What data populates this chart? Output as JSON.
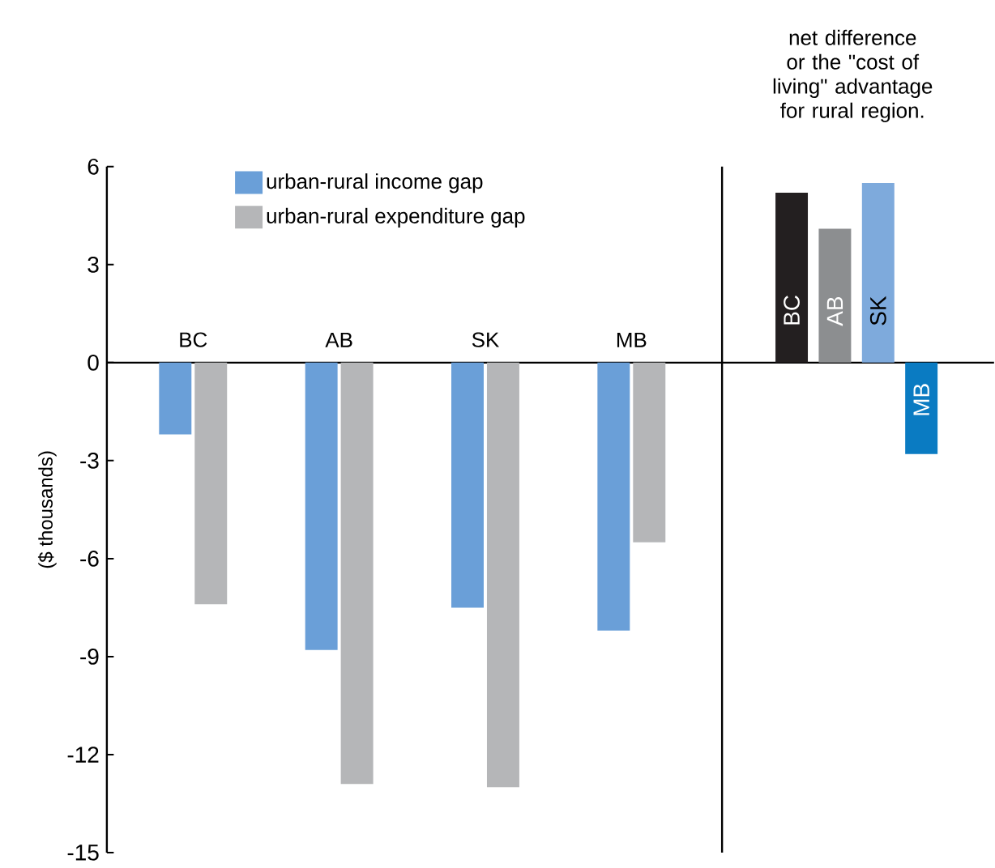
{
  "chart_data": [
    {
      "type": "bar",
      "ylabel": "($ thousands)",
      "categories": [
        "BC",
        "AB",
        "SK",
        "MB"
      ],
      "series": [
        {
          "name": "urban-rural income gap",
          "color": "#6a9fd8",
          "values": [
            -2.2,
            -8.8,
            -7.5,
            -8.2
          ]
        },
        {
          "name": "urban-rural expenditure gap",
          "color": "#b5b6b8",
          "values": [
            -7.4,
            -12.9,
            -13.0,
            -5.5
          ]
        }
      ],
      "ylim": [
        -15,
        6
      ],
      "yticks": [
        -15,
        -12,
        -9,
        -6,
        -3,
        0,
        3,
        6
      ],
      "legend": "top"
    },
    {
      "type": "bar",
      "title": "net difference or the \"cost of living\" advantage for rural region.",
      "categories": [
        "BC",
        "AB",
        "SK",
        "MB"
      ],
      "values": [
        5.2,
        4.1,
        5.5,
        -2.8
      ],
      "colors": [
        "#231f20",
        "#8c8e90",
        "#7eaadc",
        "#0a7bc2"
      ],
      "ylim": [
        -15,
        6
      ],
      "yticks": [
        -15,
        -12,
        -9,
        -6,
        -3,
        0,
        3,
        6
      ],
      "tick_labels": false
    }
  ]
}
